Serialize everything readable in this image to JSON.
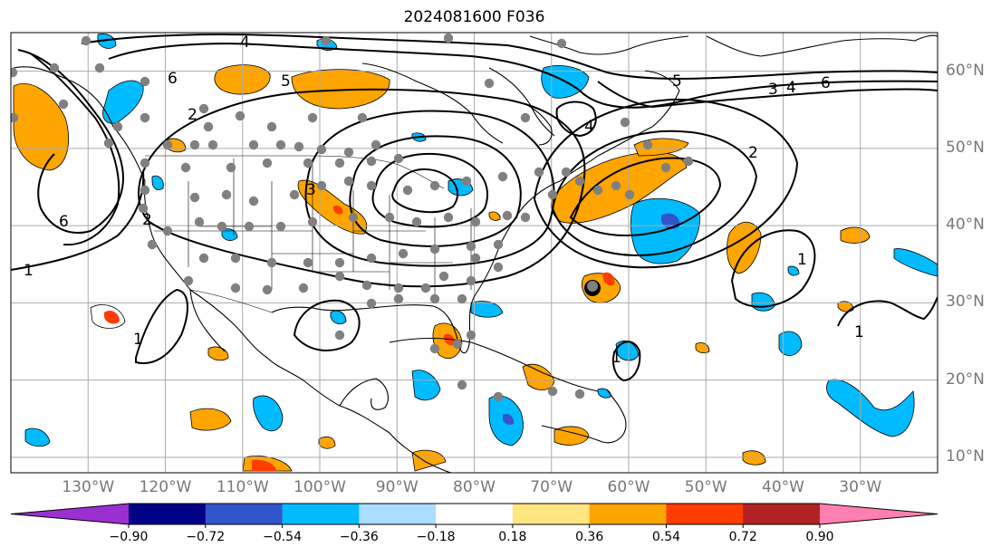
{
  "title": "2024081600 F036",
  "colors": {
    "coast": "#000000",
    "border": "#000000",
    "contour": "#000000",
    "grid": "#aaaaaa",
    "station": "#808080"
  },
  "map": {
    "lon_range": [
      -140,
      -20
    ],
    "lat_range": [
      8,
      65
    ],
    "lat_ticks": [
      "10°N",
      "20°N",
      "30°N",
      "40°N",
      "50°N",
      "60°N"
    ],
    "lat_values": [
      10,
      20,
      30,
      40,
      50,
      60
    ],
    "lon_ticks": [
      "130°W",
      "120°W",
      "110°W",
      "100°W",
      "90°W",
      "80°W",
      "70°W",
      "60°W",
      "50°W",
      "40°W",
      "30°W"
    ],
    "lon_values": [
      -130,
      -120,
      -110,
      -100,
      -90,
      -80,
      -70,
      -60,
      -50,
      -40,
      -30
    ],
    "grid": true
  },
  "colorbar": {
    "labels": [
      "−0.90",
      "−0.72",
      "−0.54",
      "−0.36",
      "−0.18",
      "0.18",
      "0.36",
      "0.54",
      "0.72",
      "0.90"
    ],
    "colors": [
      "#9b30d0",
      "#000088",
      "#3355cc",
      "#00bbff",
      "#aaddff",
      "#ffffff",
      "#ffe680",
      "#ffa500",
      "#ff3d00",
      "#b22222",
      "#ff80b0"
    ],
    "extend": "both"
  },
  "contour_labels": [
    "1",
    "2",
    "3",
    "4",
    "5",
    "6"
  ]
}
